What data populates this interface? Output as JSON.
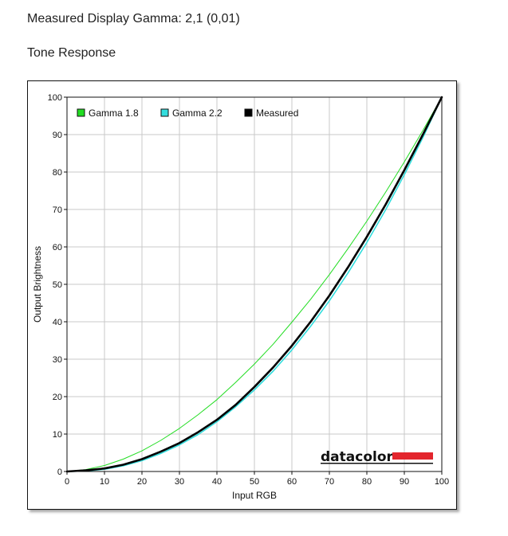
{
  "header": {
    "gamma_text": "Measured Display Gamma: 2,1 (0,01)",
    "section_title": "Tone Response"
  },
  "brand": {
    "name": "datacolor",
    "accent_color": "#e3252d"
  },
  "chart_data": {
    "type": "line",
    "xlabel": "Input RGB",
    "ylabel": "Output Brightness",
    "xlim": [
      0,
      100
    ],
    "ylim": [
      0,
      100
    ],
    "x_ticks": [
      0,
      10,
      20,
      30,
      40,
      50,
      60,
      70,
      80,
      90,
      100
    ],
    "y_ticks": [
      0,
      10,
      20,
      30,
      40,
      50,
      60,
      70,
      80,
      90,
      100
    ],
    "grid": true,
    "legend_position": "top-left",
    "series": [
      {
        "name": "Gamma 1.8",
        "color": "#22dd22",
        "x": [
          0,
          5,
          10,
          15,
          20,
          25,
          30,
          35,
          40,
          45,
          50,
          55,
          60,
          65,
          70,
          75,
          80,
          85,
          90,
          95,
          100
        ],
        "y": [
          0,
          0.5,
          1.6,
          3.3,
          5.5,
          8.3,
          11.5,
          15.2,
          19.2,
          23.8,
          28.7,
          34.0,
          39.9,
          46.0,
          52.6,
          59.6,
          66.9,
          74.6,
          82.7,
          91.2,
          100
        ]
      },
      {
        "name": "Gamma 2.2",
        "color": "#33dddd",
        "x": [
          0,
          5,
          10,
          15,
          20,
          25,
          30,
          35,
          40,
          45,
          50,
          55,
          60,
          65,
          70,
          75,
          80,
          85,
          90,
          95,
          100
        ],
        "y": [
          0,
          0.1,
          0.6,
          1.5,
          2.9,
          4.8,
          7.1,
          9.9,
          13.3,
          17.3,
          21.8,
          26.8,
          32.5,
          38.8,
          45.6,
          53.1,
          61.2,
          69.9,
          79.3,
          89.3,
          100
        ]
      },
      {
        "name": "Measured",
        "color": "#000000",
        "x": [
          0,
          5,
          10,
          15,
          20,
          25,
          30,
          35,
          40,
          45,
          50,
          55,
          60,
          65,
          70,
          75,
          80,
          85,
          90,
          95,
          100
        ],
        "y": [
          0,
          0.3,
          0.8,
          1.8,
          3.3,
          5.3,
          7.6,
          10.5,
          13.8,
          17.8,
          22.6,
          27.8,
          33.6,
          40.0,
          47.0,
          54.6,
          62.7,
          71.3,
          80.5,
          90.1,
          100
        ]
      }
    ]
  }
}
